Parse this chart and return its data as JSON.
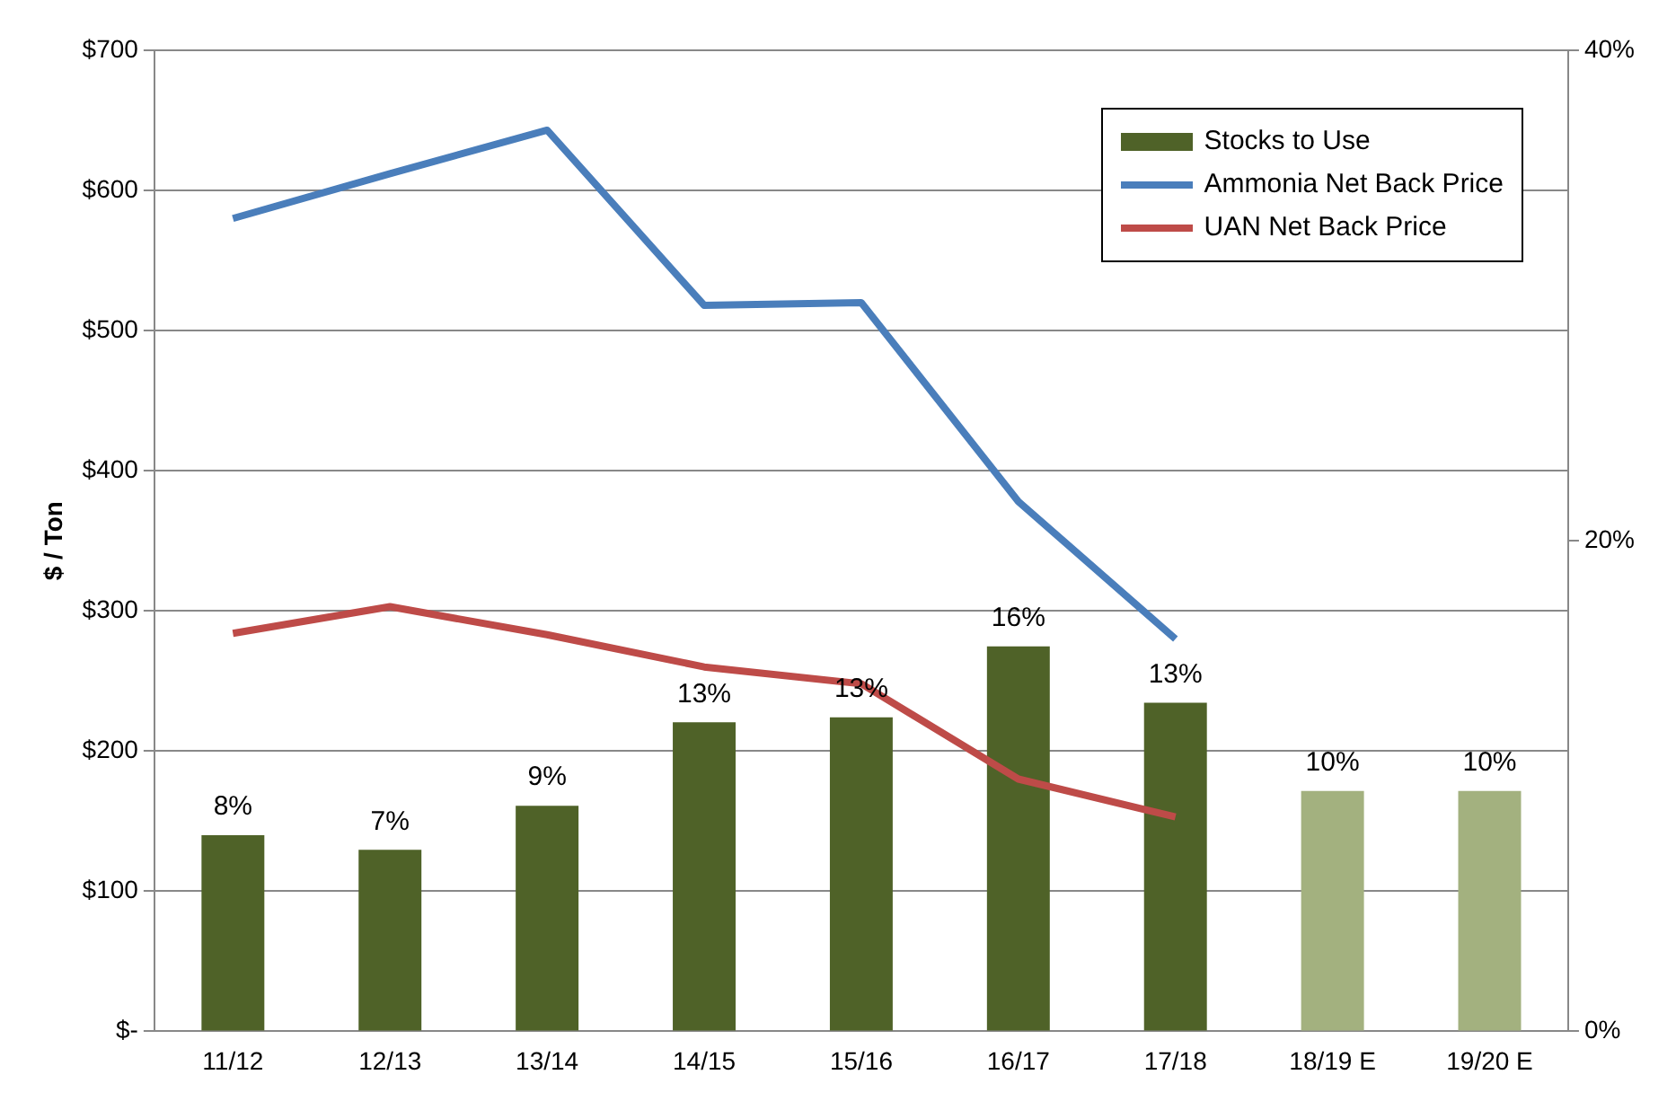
{
  "chart_data": {
    "type": "bar",
    "ylabel": "$ / Ton",
    "categories": [
      "11/12",
      "12/13",
      "13/14",
      "14/15",
      "15/16",
      "16/17",
      "17/18",
      "18/19 E",
      "19/20 E"
    ],
    "series": [
      {
        "name": "Stocks to Use",
        "type": "bar",
        "axis": "y2",
        "color": "#4f6228",
        "colors": [
          "#4f6228",
          "#4f6228",
          "#4f6228",
          "#4f6228",
          "#4f6228",
          "#4f6228",
          "#4f6228",
          "#a3b17f",
          "#a3b17f"
        ],
        "values": [
          8.0,
          7.4,
          9.2,
          12.6,
          12.8,
          15.7,
          13.4,
          9.8,
          9.8
        ],
        "value_labels": [
          "8%",
          "7%",
          "9%",
          "13%",
          "13%",
          "16%",
          "13%",
          "10%",
          "10%"
        ]
      },
      {
        "name": "Ammonia Net Back Price",
        "type": "line",
        "color": "#4a7ebb",
        "values": [
          580,
          612,
          643,
          518,
          520,
          378,
          280,
          null,
          null
        ]
      },
      {
        "name": "UAN Net Back Price",
        "type": "line",
        "color": "#be4b48",
        "values": [
          284,
          303,
          283,
          260,
          248,
          180,
          153,
          null,
          null
        ]
      }
    ],
    "ylim": [
      0,
      700
    ],
    "yticks": [
      {
        "value": 0,
        "label": "$-"
      },
      {
        "value": 100,
        "label": "$100"
      },
      {
        "value": 200,
        "label": "$200"
      },
      {
        "value": 300,
        "label": "$300"
      },
      {
        "value": 400,
        "label": "$400"
      },
      {
        "value": 500,
        "label": "$500"
      },
      {
        "value": 600,
        "label": "$600"
      },
      {
        "value": 700,
        "label": "$700"
      }
    ],
    "y2lim": [
      0,
      40
    ],
    "y2ticks": [
      {
        "value": 0,
        "label": "0%"
      },
      {
        "value": 20,
        "label": "20%"
      },
      {
        "value": 40,
        "label": "40%"
      }
    ],
    "grid": "y",
    "legend": "top right",
    "marker": "none",
    "line_style": "solid"
  }
}
